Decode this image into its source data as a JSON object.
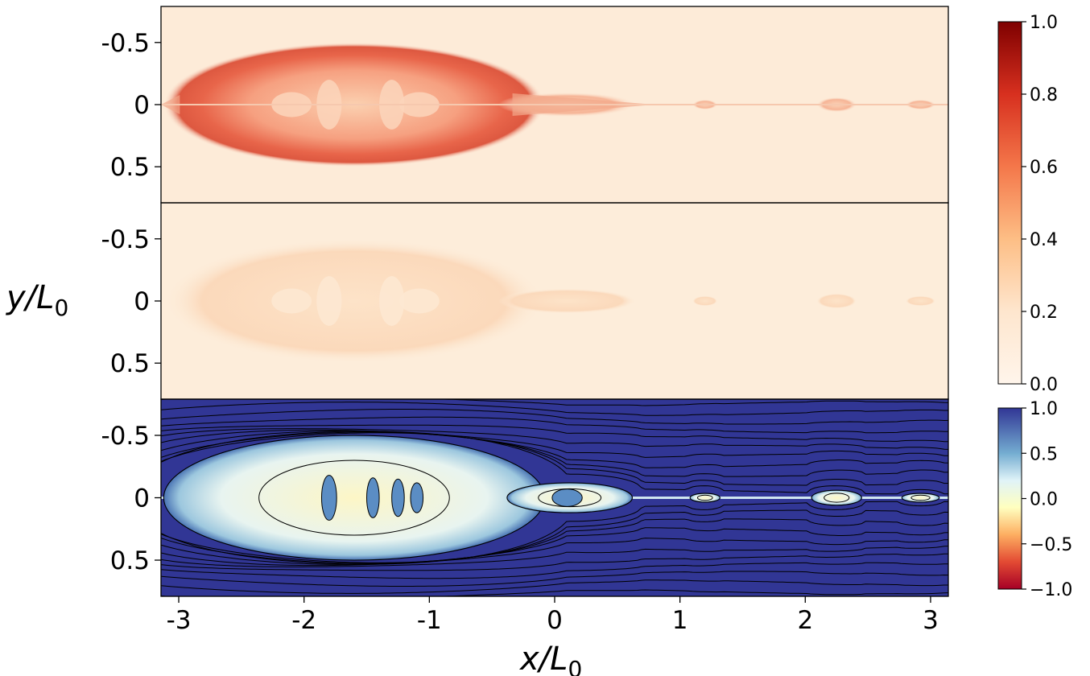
{
  "chart_data": [
    {
      "type": "heatmap",
      "panel": "top",
      "ylabel": "y/L",
      "ylabel_sub": "0",
      "xlim": [
        -3.1416,
        3.1416
      ],
      "ylim": [
        0.79,
        -0.79
      ],
      "ytick_labels": [
        "-0.5",
        "0",
        "0.5"
      ],
      "yticks": [
        -0.5,
        0,
        0.5
      ],
      "color_range": [
        0,
        1
      ],
      "colormap": [
        "#fff5eb",
        "#fdd0a2",
        "#fdae6b",
        "#f16913",
        "#d94801",
        "#a50f15",
        "#7f0000"
      ],
      "structures": [
        {
          "x": -1.6,
          "y": 0,
          "half_width": 1.52,
          "half_height": 0.5,
          "peak": 0.72
        },
        {
          "x": 0.1,
          "y": 0,
          "half_width": 0.55,
          "half_height": 0.1,
          "peak": 0.3
        },
        {
          "x": 1.2,
          "y": 0,
          "half_width": 0.1,
          "half_height": 0.04,
          "peak": 0.25
        },
        {
          "x": 2.25,
          "y": 0,
          "half_width": 0.16,
          "half_height": 0.06,
          "peak": 0.27
        },
        {
          "x": 2.92,
          "y": 0,
          "half_width": 0.12,
          "half_height": 0.04,
          "peak": 0.25
        }
      ]
    },
    {
      "type": "heatmap",
      "panel": "middle",
      "xlim": [
        -3.1416,
        3.1416
      ],
      "ylim": [
        0.79,
        -0.79
      ],
      "ytick_labels": [
        "-0.5",
        "0",
        "0.5"
      ],
      "yticks": [
        -0.5,
        0,
        0.5
      ],
      "color_range": [
        0,
        1
      ],
      "structures": [
        {
          "x": -1.6,
          "y": 0,
          "half_width": 1.52,
          "half_height": 0.5,
          "peak": 0.16
        },
        {
          "x": 0.1,
          "y": 0,
          "half_width": 0.55,
          "half_height": 0.1,
          "peak": 0.12
        },
        {
          "x": 1.2,
          "y": 0,
          "half_width": 0.1,
          "half_height": 0.04,
          "peak": 0.12
        },
        {
          "x": 2.25,
          "y": 0,
          "half_width": 0.16,
          "half_height": 0.06,
          "peak": 0.13
        },
        {
          "x": 2.92,
          "y": 0,
          "half_width": 0.12,
          "half_height": 0.04,
          "peak": 0.1
        }
      ]
    },
    {
      "type": "heatmap",
      "panel": "bottom",
      "xlabel": "x/L",
      "xlabel_sub": "0",
      "xlim": [
        -3.1416,
        3.1416
      ],
      "ylim": [
        0.79,
        -0.79
      ],
      "xtick_labels": [
        "-3",
        "-2",
        "-1",
        "0",
        "1",
        "2",
        "3"
      ],
      "xticks": [
        -3,
        -2,
        -1,
        0,
        1,
        2,
        3
      ],
      "ytick_labels": [
        "-0.5",
        "0",
        "0.5"
      ],
      "yticks": [
        -0.5,
        0,
        0.5
      ],
      "color_range": [
        -1,
        1
      ],
      "background_value": 1.0,
      "colormap": [
        "#a50026",
        "#f46d43",
        "#fee090",
        "#ffffbf",
        "#e0f3f8",
        "#74add1",
        "#313695"
      ],
      "contours": "black field lines",
      "islands": [
        {
          "x": -1.6,
          "y": 0,
          "half_width": 1.52,
          "half_height": 0.5
        },
        {
          "x": 0.12,
          "y": 0,
          "half_width": 0.5,
          "half_height": 0.12
        },
        {
          "x": 1.2,
          "y": 0,
          "half_width": 0.12,
          "half_height": 0.035
        },
        {
          "x": 2.25,
          "y": 0,
          "half_width": 0.2,
          "half_height": 0.06
        },
        {
          "x": 2.92,
          "y": 0,
          "half_width": 0.15,
          "half_height": 0.035
        }
      ]
    }
  ],
  "colorbars": [
    {
      "name": "top-colorbar",
      "range": [
        0,
        1
      ],
      "tick_labels": [
        "0.0",
        "0.2",
        "0.4",
        "0.6",
        "0.8",
        "1.0"
      ],
      "ticks": [
        0,
        0.2,
        0.4,
        0.6,
        0.8,
        1.0
      ]
    },
    {
      "name": "bottom-colorbar",
      "range": [
        -1,
        1
      ],
      "tick_labels": [
        "−1.0",
        "−0.5",
        "0.0",
        "0.5",
        "1.0"
      ],
      "ticks": [
        -1,
        -0.5,
        0,
        0.5,
        1.0
      ]
    }
  ]
}
